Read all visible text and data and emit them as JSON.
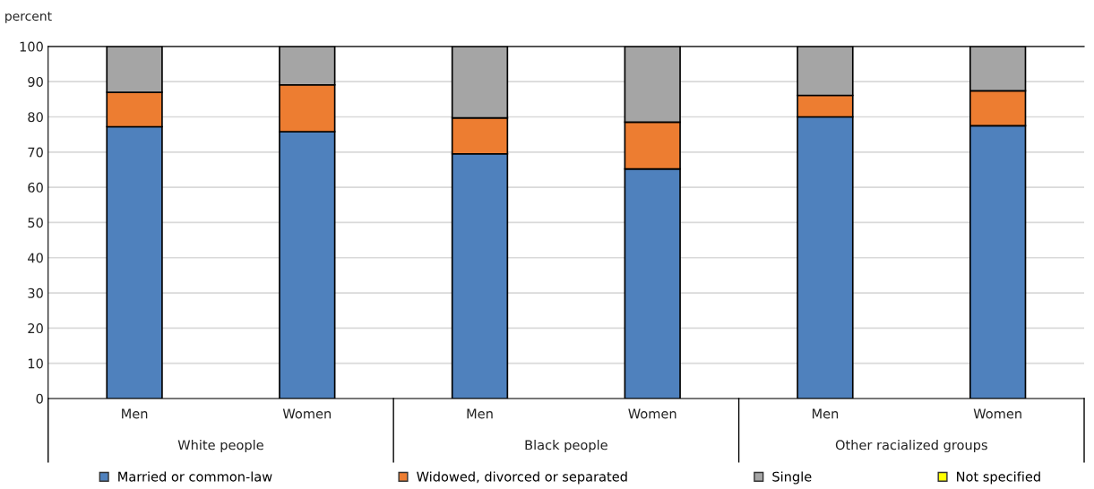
{
  "chart_data": {
    "type": "bar",
    "stacked": true,
    "ylabel": "percent",
    "categories": [
      "Men",
      "Women",
      "Men",
      "Women",
      "Men",
      "Women"
    ],
    "annotations": [
      "White people",
      "Black people",
      "Other racialized groups"
    ],
    "series": [
      {
        "name": "Married or common-law",
        "color": "#4f81bd",
        "values": [
          77.2,
          75.8,
          69.5,
          65.2,
          80.0,
          77.5
        ]
      },
      {
        "name": "Widowed, divorced or separated",
        "color": "#ed7d31",
        "values": [
          9.8,
          13.3,
          10.2,
          13.3,
          6.1,
          9.9
        ]
      },
      {
        "name": "Single",
        "color": "#a5a5a5",
        "values": [
          13.0,
          10.9,
          20.3,
          21.5,
          13.9,
          12.6
        ]
      },
      {
        "name": "Not specified",
        "color": "#ffff00",
        "values": [
          0,
          0,
          0,
          0,
          0,
          0
        ]
      }
    ],
    "ylim": [
      0,
      100
    ],
    "yticks": [
      0,
      10,
      20,
      30,
      40,
      50,
      60,
      70,
      80,
      90,
      100
    ],
    "grid": "y",
    "legend": "bottom"
  }
}
